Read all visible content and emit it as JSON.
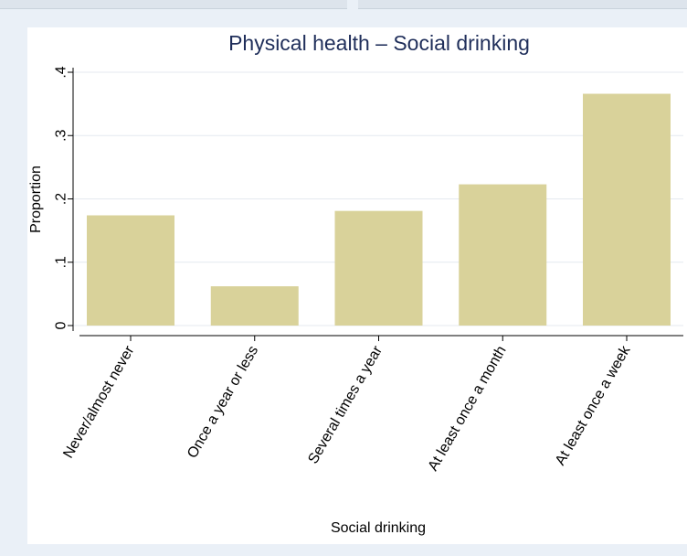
{
  "chart_data": {
    "type": "bar",
    "title": "Physical health – Social drinking",
    "xlabel": "Social drinking",
    "ylabel": "Proportion",
    "categories": [
      "Never/almost never",
      "Once a year or less",
      "Several times a year",
      "At least once a month",
      "At least once a week"
    ],
    "values": [
      0.174,
      0.062,
      0.181,
      0.223,
      0.366
    ],
    "ylim": [
      0,
      0.4
    ],
    "yticks": [
      0,
      0.1,
      0.2,
      0.3,
      0.4
    ],
    "ytick_labels": [
      "0",
      ".1",
      ".2",
      ".3",
      ".4"
    ],
    "grid": true,
    "colors": {
      "bar": "#d9d29a",
      "grid": "#e4e9ef",
      "background": "#eaf0f7"
    }
  }
}
